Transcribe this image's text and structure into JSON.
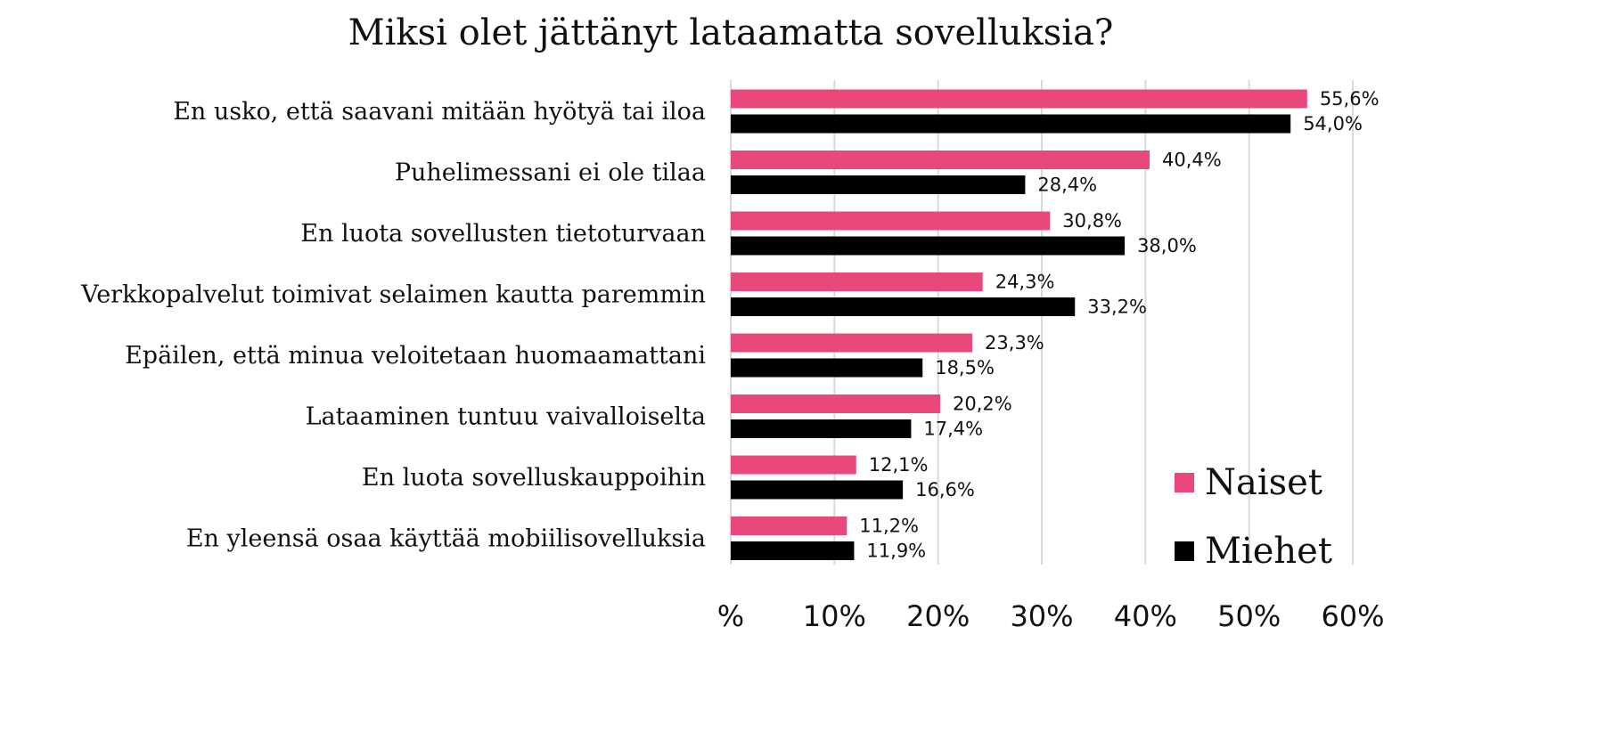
{
  "chart_data": {
    "type": "bar",
    "orientation": "horizontal",
    "title": "Miksi olet jättänyt lataamatta sovelluksia?",
    "categories": [
      "En usko, että saavani mitään hyötyä tai iloa",
      "Puhelimessani ei ole tilaa",
      "En luota sovellusten tietoturvaan",
      "Verkkopalvelut toimivat selaimen kautta paremmin",
      "Epäilen, että minua veloitetaan huomaamattani",
      "Lataaminen tuntuu vaivalloiselta",
      "En luota sovelluskauppoihin",
      "En yleensä osaa käyttää mobiilisovelluksia"
    ],
    "series": [
      {
        "name": "Naiset",
        "color": "#e8497a",
        "values": [
          55.6,
          40.4,
          30.8,
          24.3,
          23.3,
          20.2,
          12.1,
          11.2
        ],
        "labels": [
          "55,6%",
          "40,4%",
          "30,8%",
          "24,3%",
          "23,3%",
          "20,2%",
          "12,1%",
          "11,2%"
        ]
      },
      {
        "name": "Miehet",
        "color": "#000000",
        "values": [
          54.0,
          28.4,
          38.0,
          33.2,
          18.5,
          17.4,
          16.6,
          11.9
        ],
        "labels": [
          "54,0%",
          "28,4%",
          "38,0%",
          "33,2%",
          "18,5%",
          "17,4%",
          "16,6%",
          "11,9%"
        ]
      }
    ],
    "xlim": [
      0,
      60
    ],
    "xticks": [
      0,
      10,
      20,
      30,
      40,
      50,
      60
    ],
    "xtick_labels": [
      "%",
      "10%",
      "20%",
      "30%",
      "40%",
      "50%",
      "60%"
    ],
    "grid": "vertical",
    "legend_position": "bottom-right",
    "xlabel": "",
    "ylabel": ""
  }
}
